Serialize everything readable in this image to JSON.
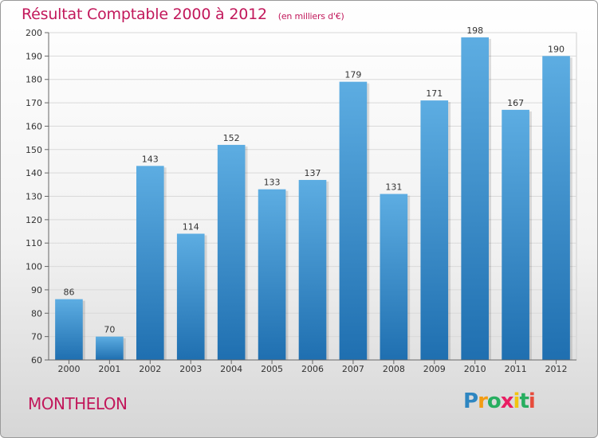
{
  "chart_data": {
    "type": "bar",
    "title": "Résultat Comptable 2000 à 2012",
    "subtitle": "(en milliers d'€)",
    "categories": [
      "2000",
      "2001",
      "2002",
      "2003",
      "2004",
      "2005",
      "2006",
      "2007",
      "2008",
      "2009",
      "2010",
      "2011",
      "2012"
    ],
    "values": [
      86,
      70,
      143,
      114,
      152,
      133,
      137,
      179,
      131,
      171,
      198,
      167,
      190
    ],
    "ylim": [
      60,
      200
    ],
    "yticks": [
      60,
      70,
      80,
      90,
      100,
      110,
      120,
      130,
      140,
      150,
      160,
      170,
      180,
      190,
      200
    ],
    "xlabel": "",
    "ylabel": "",
    "grid": true
  },
  "commune": "MONTHELON",
  "logo": {
    "letters": [
      "P",
      "r",
      "o",
      "x",
      "i",
      "t",
      "i"
    ],
    "colors": [
      "#2e86c1",
      "#f39c12",
      "#27ae60",
      "#e91e63",
      "#f1c40f",
      "#27ae60",
      "#e74c3c"
    ]
  },
  "colors": {
    "bar_top": "#5dade2",
    "bar_bottom": "#1f6fb0",
    "accent": "#c2185b"
  }
}
